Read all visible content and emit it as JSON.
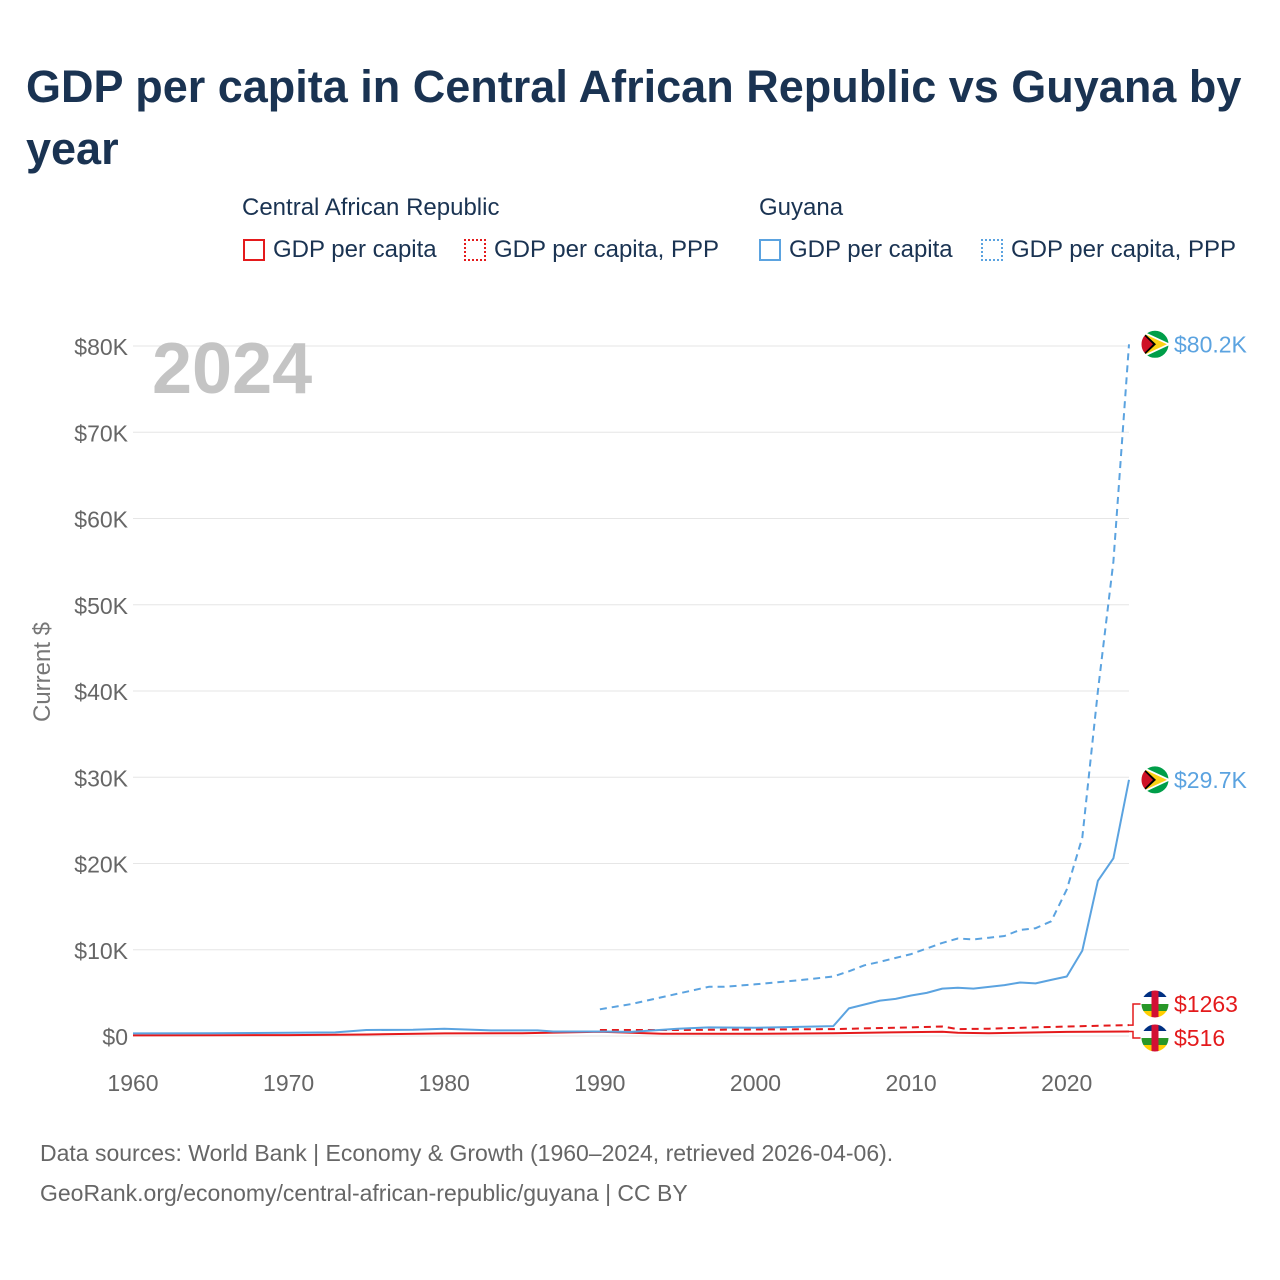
{
  "title": "GDP per capita in Central African Republic vs Guyana by year",
  "legend": {
    "group1": {
      "label": "Central African Republic",
      "items": [
        {
          "label": "GDP per capita",
          "color": "#e41a1c",
          "style": "solid"
        },
        {
          "label": "GDP per capita, PPP",
          "color": "#e41a1c",
          "style": "dotted"
        }
      ]
    },
    "group2": {
      "label": "Guyana",
      "items": [
        {
          "label": "GDP per capita",
          "color": "#5ba3e0",
          "style": "solid"
        },
        {
          "label": "GDP per capita, PPP",
          "color": "#5ba3e0",
          "style": "dotted"
        }
      ]
    }
  },
  "source": {
    "line1": "Data sources: World Bank | Economy & Growth (1960–2024, retrieved 2026-04-06).",
    "line2": "GeoRank.org/economy/central-african-republic/guyana | CC BY"
  },
  "chart_data": {
    "type": "line",
    "title": "GDP per capita in Central African Republic vs Guyana by year",
    "ylabel": "Current $",
    "xlabel": "",
    "year_label": "2024",
    "xlim": [
      1960,
      2024
    ],
    "ylim": [
      0,
      80000
    ],
    "grid": true,
    "x_ticks": [
      "1960",
      "1970",
      "1980",
      "1990",
      "2000",
      "2010",
      "2020"
    ],
    "y_ticks": [
      "$0",
      "$10K",
      "$20K",
      "$30K",
      "$40K",
      "$50K",
      "$60K",
      "$70K",
      "$80K"
    ],
    "series": [
      {
        "name": "Central African Republic — GDP per capita",
        "color": "#e41a1c",
        "dash": false,
        "end_label": "$516",
        "flag": "central-african-republic-flag",
        "x": [
          1960,
          1965,
          1970,
          1975,
          1980,
          1985,
          1990,
          1994,
          2000,
          2005,
          2010,
          2012,
          2013,
          2015,
          2020,
          2024
        ],
        "y": [
          70,
          90,
          110,
          170,
          300,
          330,
          500,
          250,
          250,
          330,
          450,
          500,
          370,
          330,
          470,
          516
        ]
      },
      {
        "name": "Central African Republic — GDP per capita, PPP",
        "color": "#e41a1c",
        "dash": true,
        "end_label": "$1263",
        "flag": "central-african-republic-flag",
        "x": [
          1990,
          1995,
          2000,
          2005,
          2010,
          2012,
          2013,
          2015,
          2020,
          2024
        ],
        "y": [
          700,
          700,
          750,
          800,
          1000,
          1100,
          800,
          850,
          1100,
          1263
        ]
      },
      {
        "name": "Guyana — GDP per capita",
        "color": "#5ba3e0",
        "dash": false,
        "end_label": "$29.7K",
        "flag": "guyana-flag",
        "x": [
          1960,
          1965,
          1970,
          1973,
          1975,
          1978,
          1980,
          1983,
          1986,
          1987,
          1990,
          1992,
          1995,
          1997,
          2000,
          2005,
          2006,
          2008,
          2009,
          2010,
          2011,
          2012,
          2013,
          2014,
          2016,
          2017,
          2018,
          2019,
          2020,
          2021,
          2022,
          2023,
          2024
        ],
        "y": [
          300,
          320,
          370,
          420,
          700,
          720,
          850,
          650,
          650,
          520,
          520,
          480,
          850,
          1000,
          950,
          1150,
          3200,
          4100,
          4300,
          4700,
          5000,
          5500,
          5600,
          5500,
          5900,
          6200,
          6100,
          6500,
          6900,
          9900,
          18000,
          20600,
          29700
        ]
      },
      {
        "name": "Guyana — GDP per capita, PPP",
        "color": "#5ba3e0",
        "dash": true,
        "end_label": "$80.2K",
        "flag": "guyana-flag",
        "x": [
          1990,
          1992,
          1995,
          1997,
          1998,
          2000,
          2003,
          2005,
          2006,
          2007,
          2008,
          2010,
          2012,
          2013,
          2014,
          2015,
          2016,
          2017,
          2018,
          2019,
          2020,
          2021,
          2022,
          2023,
          2024
        ],
        "y": [
          3100,
          3700,
          4900,
          5700,
          5700,
          6000,
          6500,
          6900,
          7500,
          8200,
          8600,
          9500,
          10800,
          11300,
          11200,
          11400,
          11600,
          12300,
          12500,
          13300,
          17000,
          23000,
          40000,
          55000,
          80200
        ]
      }
    ]
  }
}
